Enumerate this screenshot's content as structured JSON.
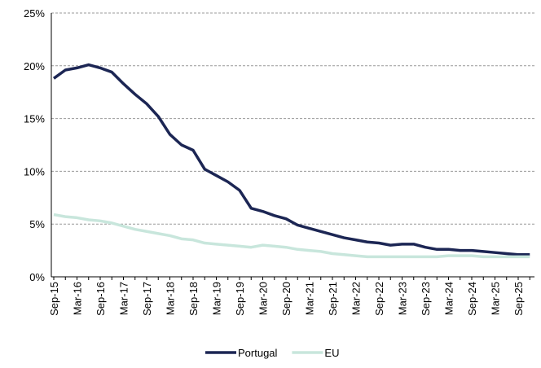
{
  "chart_data": {
    "type": "line",
    "categories": [
      "Sep-15",
      null,
      "Mar-16",
      null,
      "Sep-16",
      null,
      "Mar-17",
      null,
      "Sep-17",
      null,
      "Mar-18",
      null,
      "Sep-18",
      null,
      "Mar-19",
      null,
      "Sep-19",
      null,
      "Mar-20",
      null,
      "Sep-20",
      null,
      "Mar-21",
      null,
      "Sep-21",
      null,
      "Mar-22",
      null,
      "Sep-22",
      null,
      "Mar-23",
      null,
      "Sep-23",
      null,
      "Mar-24",
      null,
      "Sep-24",
      null,
      "Mar-25",
      null,
      "Sep-25",
      null
    ],
    "series": [
      {
        "name": "Portugal",
        "color": "#1c2654",
        "values": [
          18.8,
          19.6,
          19.8,
          20.1,
          19.8,
          19.4,
          18.3,
          17.3,
          16.4,
          15.2,
          13.5,
          12.5,
          12.0,
          10.2,
          9.6,
          9.0,
          8.2,
          6.5,
          6.2,
          5.8,
          5.5,
          4.9,
          4.6,
          4.3,
          4.0,
          3.7,
          3.5,
          3.3,
          3.2,
          3.0,
          3.1,
          3.1,
          2.8,
          2.6,
          2.6,
          2.5,
          2.5,
          2.4,
          2.3,
          2.2,
          2.1,
          2.1
        ]
      },
      {
        "name": "EU",
        "color": "#c8e6dc",
        "values": [
          5.9,
          5.7,
          5.6,
          5.4,
          5.3,
          5.1,
          4.8,
          4.5,
          4.3,
          4.1,
          3.9,
          3.6,
          3.5,
          3.2,
          3.1,
          3.0,
          2.9,
          2.8,
          3.0,
          2.9,
          2.8,
          2.6,
          2.5,
          2.4,
          2.2,
          2.1,
          2.0,
          1.9,
          1.9,
          1.9,
          1.9,
          1.9,
          1.9,
          1.9,
          2.0,
          2.0,
          2.0,
          1.9,
          1.9,
          1.9,
          1.9,
          1.9
        ]
      }
    ],
    "ylim": [
      0,
      25
    ],
    "yticks": [
      {
        "value": 0,
        "label": "0%"
      },
      {
        "value": 5,
        "label": "5%"
      },
      {
        "value": 10,
        "label": "10%"
      },
      {
        "value": 15,
        "label": "15%"
      },
      {
        "value": 20,
        "label": "20%"
      },
      {
        "value": 25,
        "label": "25%"
      }
    ],
    "grid": true,
    "legend": "bottom"
  }
}
